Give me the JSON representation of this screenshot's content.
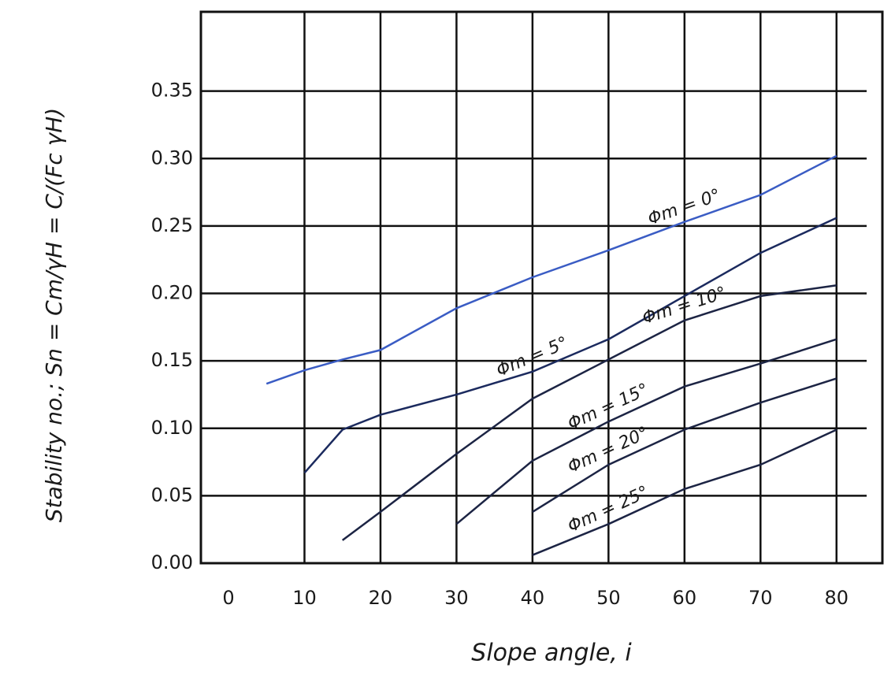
{
  "chart_data": {
    "type": "line",
    "x_label": "Slope angle, i",
    "y_label": "Stability no.; Sn = Cm/γH = C/(Fc γH)",
    "x": [
      5,
      10,
      15,
      20,
      30,
      40,
      50,
      60,
      70,
      80
    ],
    "series": [
      {
        "name": "Φm = 0°",
        "color": "#3a5cc4",
        "values": [
          0.133,
          0.143,
          0.151,
          0.158,
          0.189,
          0.212,
          0.232,
          0.253,
          0.273,
          0.302
        ]
      },
      {
        "name": "Φm = 5°",
        "color": "#1b2a5e",
        "values": [
          null,
          0.067,
          0.099,
          0.11,
          0.125,
          0.142,
          0.166,
          0.198,
          0.23,
          0.256
        ]
      },
      {
        "name": "Φm = 10°",
        "color": "#1c2444",
        "values": [
          null,
          null,
          0.017,
          0.038,
          0.081,
          0.122,
          0.151,
          0.18,
          0.198,
          0.206
        ]
      },
      {
        "name": "Φm = 15°",
        "color": "#1c2444",
        "values": [
          null,
          null,
          null,
          null,
          0.029,
          0.076,
          0.105,
          0.131,
          0.148,
          0.166
        ]
      },
      {
        "name": "Φm = 20°",
        "color": "#1c2444",
        "values": [
          null,
          null,
          null,
          null,
          null,
          0.038,
          0.073,
          0.099,
          0.119,
          0.137
        ]
      },
      {
        "name": "Φm = 25°",
        "color": "#1c2444",
        "values": [
          null,
          null,
          null,
          null,
          null,
          0.006,
          0.029,
          0.055,
          0.073,
          0.099
        ]
      }
    ],
    "xlim": [
      0,
      85
    ],
    "xticks": [
      0,
      10,
      20,
      30,
      40,
      50,
      60,
      70,
      80
    ],
    "ylim": [
      0,
      0.4
    ],
    "yticks": [
      {
        "value": 0,
        "label": "0.00"
      },
      0.05,
      {
        "value": 0.1,
        "label": "0.10"
      },
      0.15,
      {
        "value": 0.2,
        "label": "0.20"
      },
      0.25,
      {
        "value": 0.3,
        "label": "0.30"
      },
      0.35
    ],
    "grid": true
  }
}
